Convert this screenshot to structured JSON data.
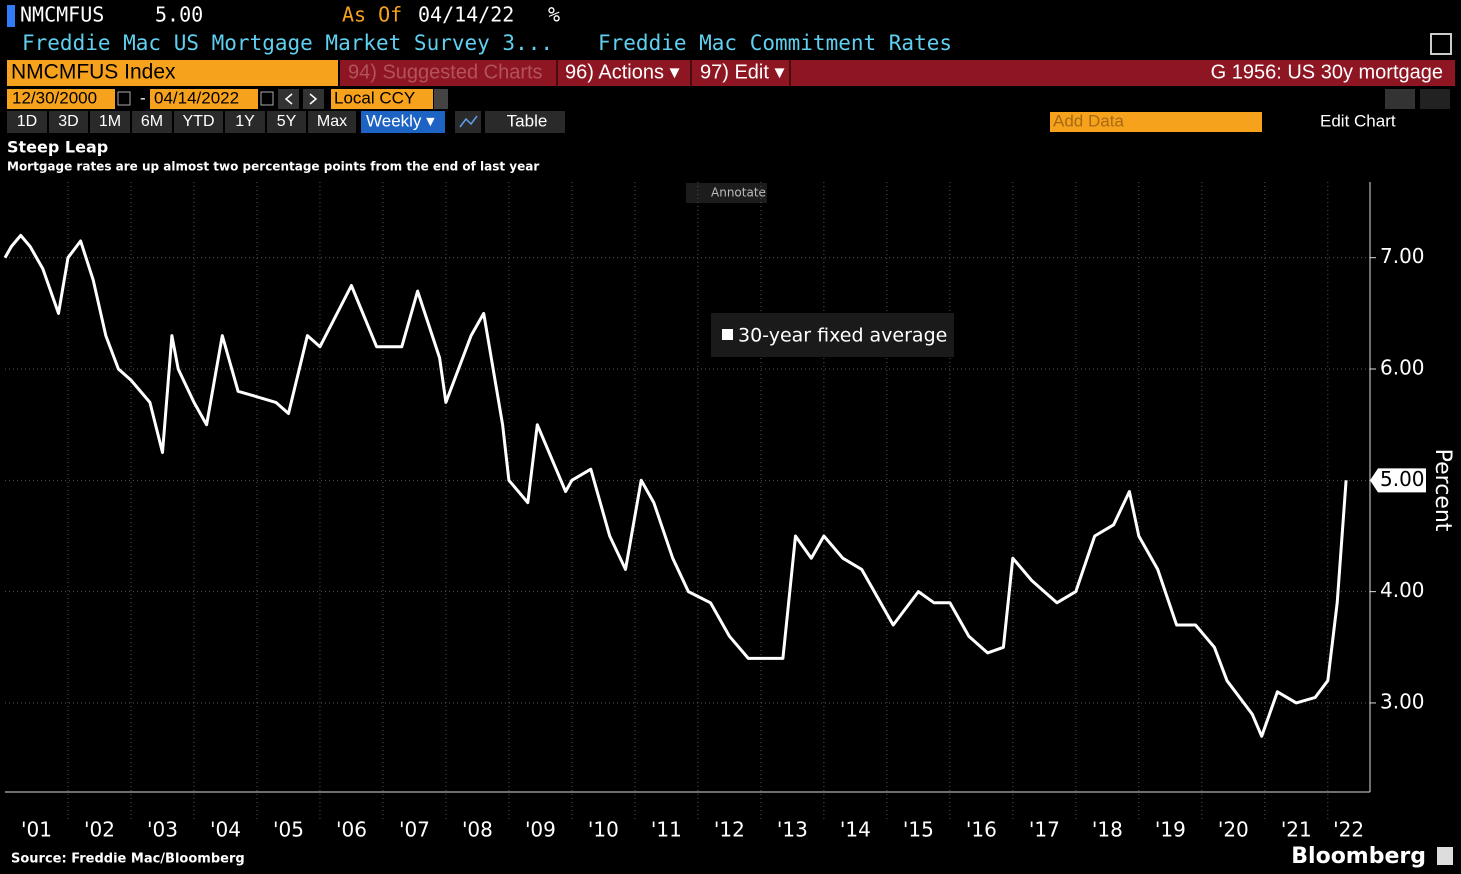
{
  "ui": {
    "ticker": "NMCMFUS",
    "price": "5.00",
    "as_of": "As Of",
    "date": "04/14/22",
    "unit": "%",
    "description": "Freddie Mac US Mortgage Market Survey 3...",
    "category": "Freddie Mac Commitment Rates",
    "security": "NMCMFUS Index",
    "suggested": "94) Suggested Charts",
    "actions": "96) Actions ▾",
    "edit": "97) Edit ▾",
    "chart_id": "G 1956: US 30y mortgage",
    "start_date": "12/30/2000",
    "dash": "-",
    "end_date": "04/14/2022",
    "currency": "Local CCY",
    "periods": [
      "1D",
      "3D",
      "1M",
      "6M",
      "YTD",
      "1Y",
      "5Y",
      "Max"
    ],
    "frequency": "Weekly ▾",
    "table": "Table",
    "add_data": "Add Data",
    "edit_chart": "Edit Chart",
    "annotate": "Annotate",
    "brand": "Bloomberg"
  },
  "chart_data": {
    "type": "line",
    "title": "Steep Leap",
    "subtitle": "Mortgage rates are up almost two percentage points from the end of last year",
    "y_label": "Percent",
    "source": "Source: Freddie Mac/Bloomberg",
    "x": [
      2001.0,
      2001.1,
      2001.25,
      2001.4,
      2001.6,
      2001.85,
      2002.0,
      2002.2,
      2002.4,
      2002.6,
      2002.8,
      2003.0,
      2003.3,
      2003.5,
      2003.65,
      2003.75,
      2004.0,
      2004.2,
      2004.45,
      2004.7,
      2005.0,
      2005.3,
      2005.5,
      2005.8,
      2006.0,
      2006.5,
      2006.9,
      2007.0,
      2007.3,
      2007.55,
      2007.9,
      2008.0,
      2008.4,
      2008.6,
      2008.9,
      2009.0,
      2009.3,
      2009.45,
      2009.9,
      2010.0,
      2010.3,
      2010.6,
      2010.85,
      2011.1,
      2011.3,
      2011.6,
      2011.85,
      2012.2,
      2012.5,
      2012.8,
      2013.0,
      2013.35,
      2013.55,
      2013.8,
      2014.0,
      2014.3,
      2014.6,
      2014.9,
      2015.1,
      2015.5,
      2015.75,
      2016.0,
      2016.3,
      2016.6,
      2016.85,
      2017.0,
      2017.3,
      2017.7,
      2018.0,
      2018.3,
      2018.6,
      2018.85,
      2019.0,
      2019.3,
      2019.6,
      2019.9,
      2020.2,
      2020.4,
      2020.8,
      2020.95,
      2021.2,
      2021.5,
      2021.8,
      2022.0,
      2022.15,
      2022.29
    ],
    "series": [
      {
        "name": "30-year fixed average",
        "color": "#ffffff",
        "values": [
          7.0,
          7.1,
          7.2,
          7.1,
          6.9,
          6.5,
          7.0,
          7.15,
          6.8,
          6.3,
          6.0,
          5.9,
          5.7,
          5.25,
          6.3,
          6.0,
          5.7,
          5.5,
          6.3,
          5.8,
          5.75,
          5.7,
          5.6,
          6.3,
          6.2,
          6.75,
          6.2,
          6.2,
          6.2,
          6.7,
          6.1,
          5.7,
          6.3,
          6.5,
          5.5,
          5.0,
          4.8,
          5.5,
          4.9,
          5.0,
          5.1,
          4.5,
          4.2,
          5.0,
          4.8,
          4.3,
          4.0,
          3.9,
          3.6,
          3.4,
          3.4,
          3.4,
          4.5,
          4.3,
          4.5,
          4.3,
          4.2,
          3.9,
          3.7,
          4.0,
          3.9,
          3.9,
          3.6,
          3.45,
          3.5,
          4.3,
          4.1,
          3.9,
          4.0,
          4.5,
          4.6,
          4.9,
          4.5,
          4.2,
          3.7,
          3.7,
          3.5,
          3.2,
          2.9,
          2.7,
          3.1,
          3.0,
          3.05,
          3.2,
          3.9,
          5.0
        ]
      }
    ],
    "last_value": {
      "value": 5.0,
      "label": "5.00"
    },
    "xlim": [
      2001,
      2022.67
    ],
    "xticks": [
      {
        "value": 2001.5,
        "label": "'01"
      },
      {
        "value": 2002.5,
        "label": "'02"
      },
      {
        "value": 2003.5,
        "label": "'03"
      },
      {
        "value": 2004.5,
        "label": "'04"
      },
      {
        "value": 2005.5,
        "label": "'05"
      },
      {
        "value": 2006.5,
        "label": "'06"
      },
      {
        "value": 2007.5,
        "label": "'07"
      },
      {
        "value": 2008.5,
        "label": "'08"
      },
      {
        "value": 2009.5,
        "label": "'09"
      },
      {
        "value": 2010.5,
        "label": "'10"
      },
      {
        "value": 2011.5,
        "label": "'11"
      },
      {
        "value": 2012.5,
        "label": "'12"
      },
      {
        "value": 2013.5,
        "label": "'13"
      },
      {
        "value": 2014.5,
        "label": "'14"
      },
      {
        "value": 2015.5,
        "label": "'15"
      },
      {
        "value": 2016.5,
        "label": "'16"
      },
      {
        "value": 2017.5,
        "label": "'17"
      },
      {
        "value": 2018.5,
        "label": "'18"
      },
      {
        "value": 2019.5,
        "label": "'19"
      },
      {
        "value": 2020.5,
        "label": "'20"
      },
      {
        "value": 2021.5,
        "label": "'21"
      },
      {
        "value": 2022.33,
        "label": "'22"
      }
    ],
    "xgrid": [
      2002,
      2003,
      2004,
      2005,
      2006,
      2007,
      2008,
      2009,
      2010,
      2011,
      2012,
      2013,
      2014,
      2015,
      2016,
      2017,
      2018,
      2019,
      2020,
      2021,
      2022
    ],
    "ylim": [
      2.2,
      7.68
    ],
    "yticks": [
      {
        "value": 3,
        "label": "3.00"
      },
      {
        "value": 4,
        "label": "4.00"
      },
      {
        "value": 5,
        "label": "5.00"
      },
      {
        "value": 6,
        "label": "6.00"
      },
      {
        "value": 7,
        "label": "7.00"
      }
    ],
    "grid": true
  }
}
